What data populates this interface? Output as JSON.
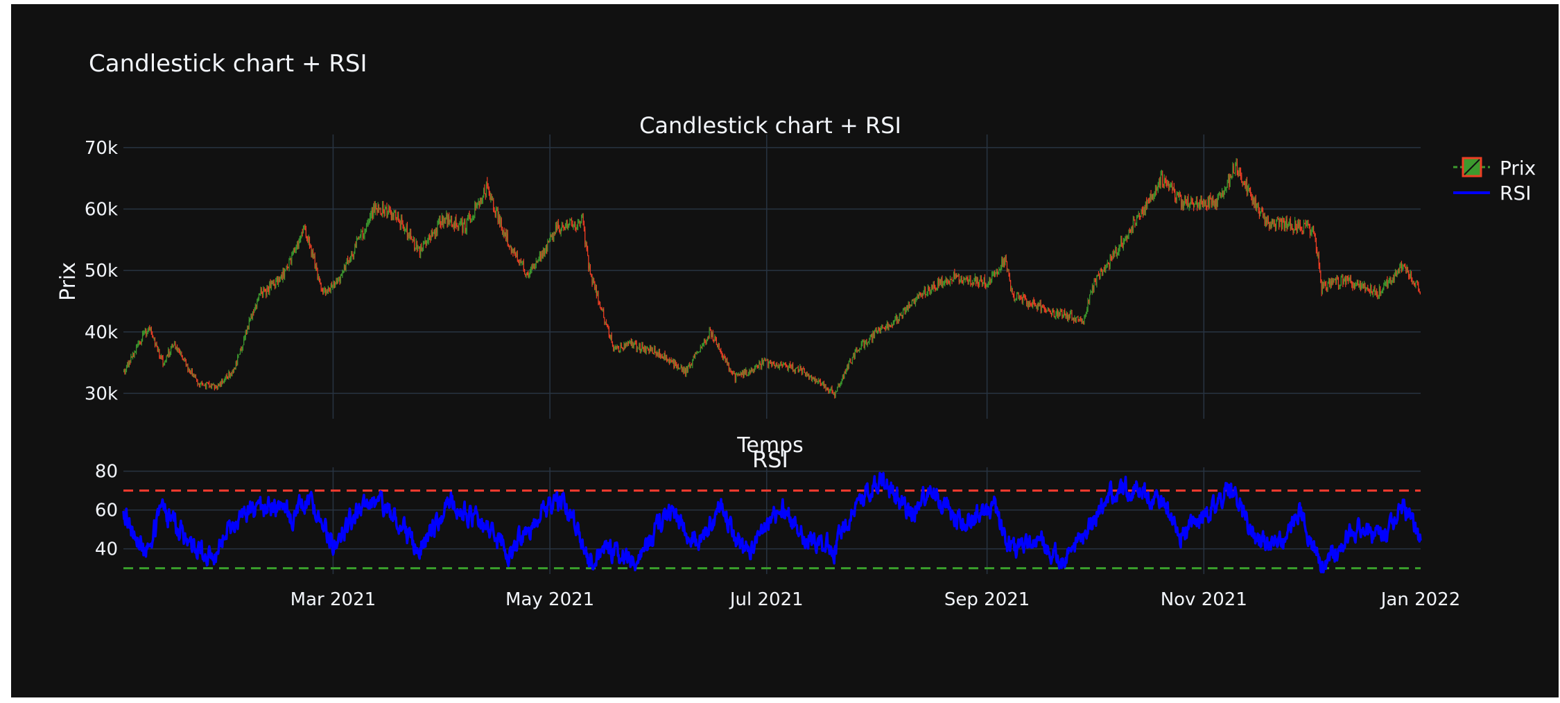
{
  "figure_title": "Candlestick chart + RSI",
  "colors": {
    "background": "#111111",
    "grid": "#283442",
    "text": "#f2f5fa",
    "increasing": "#3d9a2e",
    "decreasing": "#ef3e24",
    "rsi": "#0000ff",
    "overbought": "#ff3b2f",
    "oversold": "#3aa02c"
  },
  "legend": {
    "placement": "top-right",
    "items": [
      {
        "key": "price",
        "label": "Prix"
      },
      {
        "key": "rsi",
        "label": "RSI"
      }
    ]
  },
  "chart_data": [
    {
      "type": "candlestick",
      "title": "Candlestick chart + RSI",
      "xlabel": "Temps",
      "ylabel": "Prix",
      "xlim": [
        "2021-01-01",
        "2022-01-01"
      ],
      "ylim": [
        27000,
        71000
      ],
      "yticks": [
        {
          "value": 30000,
          "label": "30k"
        },
        {
          "value": 40000,
          "label": "40k"
        },
        {
          "value": 50000,
          "label": "50k"
        },
        {
          "value": 60000,
          "label": "60k"
        },
        {
          "value": 70000,
          "label": "70k"
        }
      ],
      "grid": true,
      "series": [
        {
          "name": "Prix",
          "anchors": [
            [
              "2021-01-01",
              33500
            ],
            [
              "2021-01-08",
              41000
            ],
            [
              "2021-01-12",
              35000
            ],
            [
              "2021-01-15",
              38000
            ],
            [
              "2021-01-22",
              31500
            ],
            [
              "2021-01-27",
              31000
            ],
            [
              "2021-02-01",
              34000
            ],
            [
              "2021-02-08",
              46000
            ],
            [
              "2021-02-14",
              48500
            ],
            [
              "2021-02-21",
              57000
            ],
            [
              "2021-02-26",
              46000
            ],
            [
              "2021-03-03",
              49000
            ],
            [
              "2021-03-13",
              60500
            ],
            [
              "2021-03-20",
              58000
            ],
            [
              "2021-03-25",
              53000
            ],
            [
              "2021-04-01",
              58500
            ],
            [
              "2021-04-07",
              57000
            ],
            [
              "2021-04-13",
              63500
            ],
            [
              "2021-04-18",
              56000
            ],
            [
              "2021-04-25",
              49000
            ],
            [
              "2021-05-03",
              57000
            ],
            [
              "2021-05-10",
              58000
            ],
            [
              "2021-05-12",
              50000
            ],
            [
              "2021-05-19",
              37000
            ],
            [
              "2021-05-24",
              38000
            ],
            [
              "2021-06-01",
              36500
            ],
            [
              "2021-06-08",
              33500
            ],
            [
              "2021-06-15",
              40000
            ],
            [
              "2021-06-22",
              32500
            ],
            [
              "2021-06-30",
              35000
            ],
            [
              "2021-07-10",
              34000
            ],
            [
              "2021-07-20",
              30000
            ],
            [
              "2021-07-26",
              37000
            ],
            [
              "2021-08-01",
              40000
            ],
            [
              "2021-08-06",
              42000
            ],
            [
              "2021-08-14",
              46500
            ],
            [
              "2021-08-22",
              49000
            ],
            [
              "2021-09-01",
              48000
            ],
            [
              "2021-09-06",
              52000
            ],
            [
              "2021-09-08",
              46000
            ],
            [
              "2021-09-20",
              43000
            ],
            [
              "2021-09-28",
              42000
            ],
            [
              "2021-10-01",
              48000
            ],
            [
              "2021-10-10",
              55500
            ],
            [
              "2021-10-20",
              65000
            ],
            [
              "2021-10-26",
              61000
            ],
            [
              "2021-11-05",
              61500
            ],
            [
              "2021-11-10",
              67000
            ],
            [
              "2021-11-18",
              58000
            ],
            [
              "2021-11-25",
              57500
            ],
            [
              "2021-12-02",
              56500
            ],
            [
              "2021-12-04",
              47000
            ],
            [
              "2021-12-10",
              48500
            ],
            [
              "2021-12-20",
              46500
            ],
            [
              "2021-12-27",
              51000
            ],
            [
              "2022-01-01",
              46500
            ]
          ]
        }
      ]
    },
    {
      "type": "line",
      "title": "RSI",
      "xlim": [
        "2021-01-01",
        "2022-01-01"
      ],
      "ylim": [
        27,
        82
      ],
      "yticks": [
        {
          "value": 40,
          "label": "40"
        },
        {
          "value": 60,
          "label": "60"
        },
        {
          "value": 80,
          "label": "80"
        }
      ],
      "xticks": [
        {
          "value": "2021-03-01",
          "label": "Mar 2021"
        },
        {
          "value": "2021-05-01",
          "label": "May 2021"
        },
        {
          "value": "2021-07-01",
          "label": "Jul 2021"
        },
        {
          "value": "2021-09-01",
          "label": "Sep 2021"
        },
        {
          "value": "2021-11-01",
          "label": "Nov 2021"
        },
        {
          "value": "2022-01-01",
          "label": "Jan 2022"
        }
      ],
      "grid": true,
      "reference_lines": [
        {
          "value": 70,
          "color": "#ff3b2f",
          "dash": true
        },
        {
          "value": 30,
          "color": "#3aa02c",
          "dash": true
        }
      ],
      "series": [
        {
          "name": "RSI",
          "anchors": [
            [
              "2021-01-01",
              58
            ],
            [
              "2021-01-07",
              38
            ],
            [
              "2021-01-12",
              60
            ],
            [
              "2021-01-20",
              43
            ],
            [
              "2021-01-26",
              35
            ],
            [
              "2021-02-03",
              58
            ],
            [
              "2021-02-10",
              62
            ],
            [
              "2021-02-18",
              57
            ],
            [
              "2021-02-22",
              67
            ],
            [
              "2021-03-01",
              42
            ],
            [
              "2021-03-08",
              60
            ],
            [
              "2021-03-14",
              66
            ],
            [
              "2021-03-25",
              40
            ],
            [
              "2021-04-03",
              64
            ],
            [
              "2021-04-13",
              52
            ],
            [
              "2021-04-20",
              38
            ],
            [
              "2021-04-28",
              58
            ],
            [
              "2021-05-05",
              65
            ],
            [
              "2021-05-12",
              35
            ],
            [
              "2021-05-19",
              40
            ],
            [
              "2021-05-24",
              32
            ],
            [
              "2021-06-03",
              58
            ],
            [
              "2021-06-12",
              44
            ],
            [
              "2021-06-18",
              63
            ],
            [
              "2021-06-25",
              36
            ],
            [
              "2021-07-05",
              62
            ],
            [
              "2021-07-12",
              46
            ],
            [
              "2021-07-20",
              40
            ],
            [
              "2021-07-27",
              66
            ],
            [
              "2021-08-03",
              75
            ],
            [
              "2021-08-10",
              58
            ],
            [
              "2021-08-16",
              70
            ],
            [
              "2021-08-25",
              53
            ],
            [
              "2021-09-03",
              62
            ],
            [
              "2021-09-08",
              38
            ],
            [
              "2021-09-15",
              46
            ],
            [
              "2021-09-22",
              35
            ],
            [
              "2021-09-30",
              52
            ],
            [
              "2021-10-05",
              68
            ],
            [
              "2021-10-12",
              72
            ],
            [
              "2021-10-20",
              62
            ],
            [
              "2021-10-26",
              47
            ],
            [
              "2021-11-03",
              60
            ],
            [
              "2021-11-09",
              72
            ],
            [
              "2021-11-16",
              43
            ],
            [
              "2021-11-24",
              45
            ],
            [
              "2021-11-28",
              60
            ],
            [
              "2021-12-04",
              30
            ],
            [
              "2021-12-14",
              52
            ],
            [
              "2021-12-22",
              45
            ],
            [
              "2021-12-27",
              63
            ],
            [
              "2022-01-01",
              45
            ]
          ]
        }
      ]
    }
  ]
}
